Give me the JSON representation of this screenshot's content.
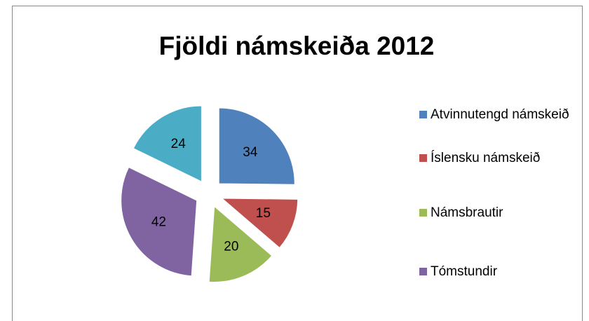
{
  "chart_data": {
    "type": "pie",
    "title": "Fjöldi námskeiða 2012",
    "categories": [
      "Atvinnutengd námskeið",
      "Íslensku námskeið",
      "Námsbrautir",
      "Tómstundir",
      null
    ],
    "values": [
      34,
      15,
      20,
      42,
      24
    ],
    "colors": [
      "#4f81bd",
      "#c0504d",
      "#9bbb59",
      "#8064a2",
      "#4bacc6"
    ],
    "exploded": true,
    "legend": "right"
  }
}
